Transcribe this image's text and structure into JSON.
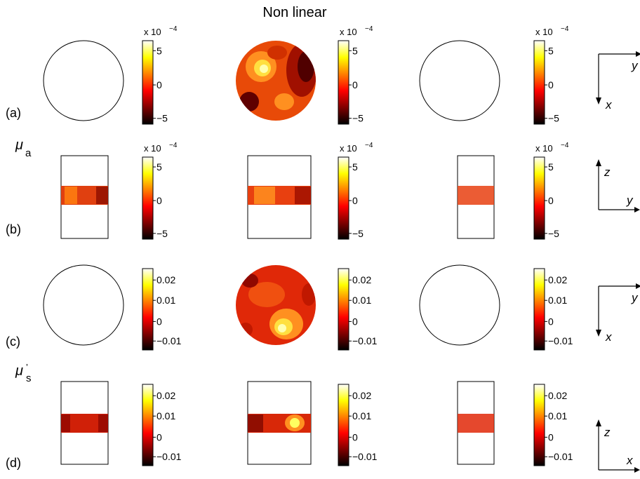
{
  "title": "Non linear",
  "panels": [
    {
      "label": "(a)",
      "colorbar_exponent": "x 10",
      "colorbar_exponent_power": "−4",
      "ticks": [
        "5",
        "0",
        "−5"
      ]
    },
    {
      "label": "(b)",
      "colorbar_exponent": "x 10",
      "colorbar_exponent_power": "−4",
      "ticks": [
        "5",
        "0",
        "−5"
      ]
    },
    {
      "label": "(c)",
      "colorbar_exponent": "",
      "colorbar_exponent_power": "",
      "ticks": [
        "0.02",
        "0.01",
        "0",
        "−0.01"
      ]
    },
    {
      "label": "(d)",
      "colorbar_exponent": "",
      "colorbar_exponent_power": "",
      "ticks": [
        "0.02",
        "0.01",
        "0",
        "−0.01"
      ]
    }
  ],
  "symbols": {
    "mu": "μ",
    "mu_a_sub": "a",
    "mu_s_sub": "s",
    "mu_s_prime": "’"
  },
  "axes_labels": [
    {
      "h": "y",
      "v": "x"
    },
    {
      "h": "y",
      "v": "z"
    },
    {
      "h": "y",
      "v": "x"
    },
    {
      "h": "x",
      "v": "z"
    }
  ],
  "colors": {
    "colormap": [
      "#000000",
      "#800000",
      "#ff0000",
      "#ff8000",
      "#ffff00",
      "#ffffff"
    ],
    "outline": "#000000"
  }
}
